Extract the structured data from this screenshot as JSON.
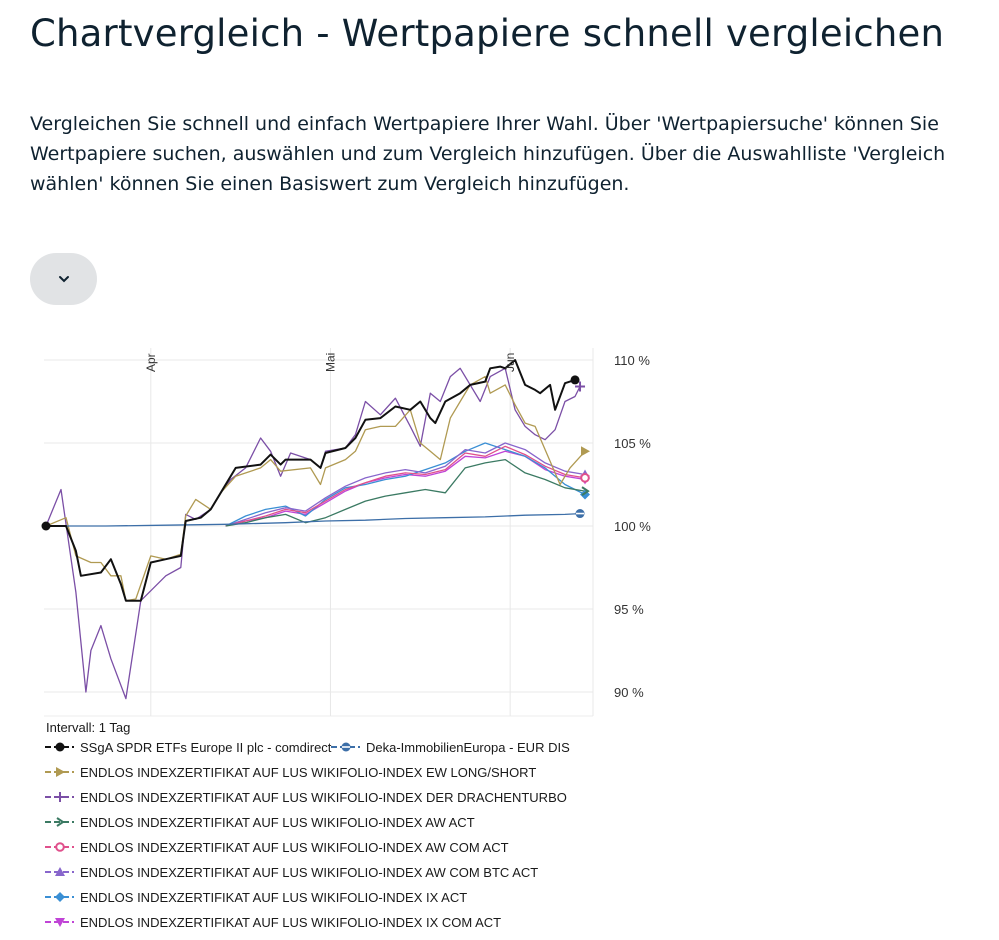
{
  "header": {
    "title": "Chartvergleich - Wertpapiere schnell vergleichen",
    "description": "Vergleichen Sie schnell und einfach Wertpapiere Ihrer Wahl. Über 'Wertpapiersuche' können Sie Wertpapiere suchen, auswählen und zum Vergleich hinzufügen. Über die Auswahlliste 'Vergleich wählen' können Sie einen Basiswert zum Vergleich hinzufügen."
  },
  "controls": {
    "dropdown_icon": "chevron-down-icon"
  },
  "chart_data": {
    "type": "line",
    "y_unit": "%",
    "ylim": [
      89,
      111
    ],
    "y_ticks": [
      {
        "value": 110,
        "label": "110 %"
      },
      {
        "value": 105,
        "label": "105 %"
      },
      {
        "value": 100,
        "label": "100 %"
      },
      {
        "value": 95,
        "label": "95 %"
      },
      {
        "value": 90,
        "label": "90 %"
      }
    ],
    "x_range": [
      0,
      109
    ],
    "x_ticks": [
      {
        "pos": 21,
        "label": "Apr"
      },
      {
        "pos": 57,
        "label": "Mai"
      },
      {
        "pos": 93,
        "label": "Jun"
      }
    ],
    "interval_label": "Intervall: 1 Tag",
    "grid": true,
    "series": [
      {
        "name": "SSgA SPDR ETFs Europe II plc - comdirect",
        "color": "#111111",
        "marker": "circle",
        "legend_row": 0,
        "legend_col": 0,
        "points": [
          [
            0,
            100
          ],
          [
            4,
            100
          ],
          [
            6,
            98.5
          ],
          [
            7,
            97
          ],
          [
            11,
            97.2
          ],
          [
            13,
            98
          ],
          [
            15,
            96.5
          ],
          [
            16,
            95.5
          ],
          [
            19,
            95.5
          ],
          [
            21,
            97.8
          ],
          [
            24,
            98
          ],
          [
            27,
            98.2
          ],
          [
            28,
            100.3
          ],
          [
            31,
            100.5
          ],
          [
            33,
            101
          ],
          [
            35,
            102
          ],
          [
            38,
            103.5
          ],
          [
            43,
            103.7
          ],
          [
            45,
            104.3
          ],
          [
            47,
            103.7
          ],
          [
            48,
            104
          ],
          [
            53,
            104
          ],
          [
            55,
            103.5
          ],
          [
            56,
            104.4
          ],
          [
            60,
            104.7
          ],
          [
            62,
            105.3
          ],
          [
            64,
            106.4
          ],
          [
            67,
            106.5
          ],
          [
            70,
            107.2
          ],
          [
            73,
            107
          ],
          [
            75,
            107.5
          ],
          [
            77,
            106.5
          ],
          [
            78,
            106.2
          ],
          [
            80,
            107.5
          ],
          [
            83,
            108
          ],
          [
            85,
            108.5
          ],
          [
            88,
            108.7
          ],
          [
            89,
            109.5
          ],
          [
            91,
            109.6
          ],
          [
            92,
            109.5
          ],
          [
            94,
            110
          ],
          [
            96,
            108.5
          ],
          [
            98,
            108.2
          ],
          [
            99,
            108
          ],
          [
            101,
            108.5
          ],
          [
            102,
            107
          ],
          [
            104,
            108.6
          ],
          [
            106,
            108.8
          ]
        ]
      },
      {
        "name": "Deka-ImmobilienEuropa - EUR DIS",
        "color": "#3d6fa8",
        "marker": "circle-half",
        "legend_row": 0,
        "legend_col": 1,
        "points": [
          [
            0,
            100
          ],
          [
            12,
            100
          ],
          [
            24,
            100.05
          ],
          [
            36,
            100.1
          ],
          [
            48,
            100.2
          ],
          [
            56,
            100.3
          ],
          [
            64,
            100.35
          ],
          [
            72,
            100.45
          ],
          [
            80,
            100.5
          ],
          [
            88,
            100.55
          ],
          [
            96,
            100.65
          ],
          [
            104,
            100.7
          ],
          [
            107,
            100.75
          ]
        ]
      },
      {
        "name": "ENDLOS INDEXZERTIFIKAT AUF LUS WIKIFOLIO-INDEX EW LONG/SHORT",
        "color": "#b09a52",
        "marker": "triangle-right",
        "legend_row": 1,
        "legend_col": 0,
        "points": [
          [
            0,
            100
          ],
          [
            4,
            100.5
          ],
          [
            6,
            98.2
          ],
          [
            9,
            97.8
          ],
          [
            11,
            97.8
          ],
          [
            13,
            97
          ],
          [
            15,
            97
          ],
          [
            16,
            95.5
          ],
          [
            18,
            95.6
          ],
          [
            21,
            98.2
          ],
          [
            24,
            98
          ],
          [
            27,
            98.3
          ],
          [
            28,
            100.6
          ],
          [
            30,
            101.6
          ],
          [
            33,
            101
          ],
          [
            35,
            102
          ],
          [
            38,
            103
          ],
          [
            43,
            103.5
          ],
          [
            45,
            104
          ],
          [
            47,
            103.3
          ],
          [
            53,
            103.5
          ],
          [
            55,
            102.5
          ],
          [
            56,
            103.5
          ],
          [
            60,
            104
          ],
          [
            62,
            104.5
          ],
          [
            64,
            105.8
          ],
          [
            67,
            106
          ],
          [
            70,
            106
          ],
          [
            73,
            107
          ],
          [
            75,
            105
          ],
          [
            77,
            104.5
          ],
          [
            79,
            104
          ],
          [
            81,
            106.5
          ],
          [
            83,
            107.5
          ],
          [
            85,
            108.5
          ],
          [
            88,
            109
          ],
          [
            89,
            108
          ],
          [
            92,
            108.5
          ],
          [
            94,
            107.3
          ],
          [
            96,
            106.2
          ],
          [
            98,
            106
          ],
          [
            100,
            104.6
          ],
          [
            103,
            102.5
          ],
          [
            105,
            103.5
          ],
          [
            108,
            104.5
          ]
        ]
      },
      {
        "name": "ENDLOS INDEXZERTIFIKAT AUF LUS WIKIFOLIO-INDEX DER DRACHENTURBO",
        "color": "#7b4fa6",
        "marker": "plus",
        "legend_row": 2,
        "legend_col": 0,
        "points": [
          [
            0,
            100
          ],
          [
            3,
            102.2
          ],
          [
            6,
            96
          ],
          [
            8,
            90
          ],
          [
            9,
            92.5
          ],
          [
            11,
            94
          ],
          [
            13,
            92
          ],
          [
            16,
            89.6
          ],
          [
            19,
            95.5
          ],
          [
            24,
            97
          ],
          [
            27,
            97.5
          ],
          [
            28,
            100.7
          ],
          [
            30,
            100.4
          ],
          [
            33,
            101
          ],
          [
            35,
            102
          ],
          [
            37,
            102.8
          ],
          [
            40,
            103.5
          ],
          [
            43,
            105.3
          ],
          [
            45,
            104.5
          ],
          [
            47,
            103
          ],
          [
            49,
            104.4
          ],
          [
            53,
            104
          ],
          [
            55,
            103.5
          ],
          [
            56,
            104.5
          ],
          [
            60,
            104.7
          ],
          [
            62,
            105.5
          ],
          [
            64,
            107.5
          ],
          [
            67,
            106.7
          ],
          [
            70,
            107.7
          ],
          [
            73,
            106
          ],
          [
            75,
            104.8
          ],
          [
            77,
            108
          ],
          [
            79,
            107.5
          ],
          [
            81,
            109
          ],
          [
            83,
            109.5
          ],
          [
            85,
            108.5
          ],
          [
            87,
            107.5
          ],
          [
            89,
            109
          ],
          [
            92,
            109.5
          ],
          [
            94,
            107
          ],
          [
            96,
            106
          ],
          [
            98,
            105.5
          ],
          [
            100,
            105.2
          ],
          [
            102,
            105.8
          ],
          [
            104,
            107.5
          ],
          [
            106,
            107.8
          ],
          [
            107,
            108.4
          ]
        ]
      },
      {
        "name": "ENDLOS INDEXZERTIFIKAT AUF LUS WIKIFOLIO-INDEX AW ACT",
        "color": "#3b7a63",
        "marker": "chevron-right",
        "legend_row": 3,
        "legend_col": 0,
        "points": [
          [
            36,
            100
          ],
          [
            40,
            100.2
          ],
          [
            44,
            100.5
          ],
          [
            48,
            100.7
          ],
          [
            52,
            100.2
          ],
          [
            56,
            100.5
          ],
          [
            60,
            101
          ],
          [
            64,
            101.5
          ],
          [
            68,
            101.8
          ],
          [
            72,
            102
          ],
          [
            76,
            102.2
          ],
          [
            80,
            102
          ],
          [
            84,
            103.5
          ],
          [
            88,
            103.8
          ],
          [
            92,
            104
          ],
          [
            96,
            103.2
          ],
          [
            100,
            102.8
          ],
          [
            104,
            102.3
          ],
          [
            108,
            102.1
          ]
        ]
      },
      {
        "name": "ENDLOS INDEXZERTIFIKAT AUF LUS WIKIFOLIO-INDEX AW COM ACT",
        "color": "#e0508c",
        "marker": "circle-open",
        "legend_row": 4,
        "legend_col": 0,
        "points": [
          [
            36,
            100
          ],
          [
            40,
            100.3
          ],
          [
            44,
            100.6
          ],
          [
            48,
            101
          ],
          [
            52,
            100.8
          ],
          [
            56,
            101.5
          ],
          [
            60,
            102.2
          ],
          [
            64,
            102.6
          ],
          [
            68,
            103
          ],
          [
            72,
            103.2
          ],
          [
            76,
            103.1
          ],
          [
            80,
            103.4
          ],
          [
            84,
            104.4
          ],
          [
            88,
            104.2
          ],
          [
            92,
            104.8
          ],
          [
            96,
            104.3
          ],
          [
            100,
            103.6
          ],
          [
            104,
            103.1
          ],
          [
            108,
            102.9
          ]
        ]
      },
      {
        "name": "ENDLOS INDEXZERTIFIKAT AUF LUS WIKIFOLIO-INDEX AW COM BTC ACT",
        "color": "#8866cc",
        "marker": "triangle-up",
        "legend_row": 5,
        "legend_col": 0,
        "points": [
          [
            36,
            100
          ],
          [
            40,
            100.4
          ],
          [
            44,
            100.8
          ],
          [
            48,
            101.1
          ],
          [
            52,
            100.9
          ],
          [
            56,
            101.7
          ],
          [
            60,
            102.4
          ],
          [
            64,
            102.9
          ],
          [
            68,
            103.2
          ],
          [
            72,
            103.4
          ],
          [
            76,
            103.2
          ],
          [
            80,
            103.6
          ],
          [
            84,
            104.6
          ],
          [
            88,
            104.4
          ],
          [
            92,
            105
          ],
          [
            96,
            104.6
          ],
          [
            100,
            103.8
          ],
          [
            104,
            103.3
          ],
          [
            108,
            103.1
          ]
        ]
      },
      {
        "name": "ENDLOS INDEXZERTIFIKAT AUF LUS WIKIFOLIO-INDEX IX ACT",
        "color": "#3a8fd4",
        "marker": "diamond",
        "legend_row": 6,
        "legend_col": 0,
        "points": [
          [
            36,
            100
          ],
          [
            40,
            100.6
          ],
          [
            44,
            101
          ],
          [
            48,
            101.2
          ],
          [
            52,
            100.6
          ],
          [
            56,
            101.6
          ],
          [
            60,
            102.3
          ],
          [
            64,
            102.5
          ],
          [
            68,
            102.8
          ],
          [
            72,
            103
          ],
          [
            76,
            103.4
          ],
          [
            80,
            103.8
          ],
          [
            84,
            104.5
          ],
          [
            88,
            105
          ],
          [
            92,
            104.6
          ],
          [
            96,
            104.2
          ],
          [
            100,
            103.5
          ],
          [
            104,
            102.5
          ],
          [
            108,
            101.9
          ]
        ]
      },
      {
        "name": "ENDLOS INDEXZERTIFIKAT AUF LUS WIKIFOLIO-INDEX IX COM ACT",
        "color": "#c044d6",
        "marker": "triangle-down",
        "legend_row": 7,
        "legend_col": 0,
        "points": [
          [
            36,
            100
          ],
          [
            40,
            100.3
          ],
          [
            44,
            100.5
          ],
          [
            48,
            100.9
          ],
          [
            52,
            100.7
          ],
          [
            56,
            101.4
          ],
          [
            60,
            102.1
          ],
          [
            64,
            102.6
          ],
          [
            68,
            102.9
          ],
          [
            72,
            103.1
          ],
          [
            76,
            103
          ],
          [
            80,
            103.3
          ],
          [
            84,
            104.2
          ],
          [
            88,
            104.1
          ],
          [
            92,
            104.5
          ],
          [
            96,
            104.2
          ],
          [
            100,
            103.4
          ],
          [
            104,
            103
          ],
          [
            108,
            102.8
          ]
        ]
      }
    ]
  }
}
